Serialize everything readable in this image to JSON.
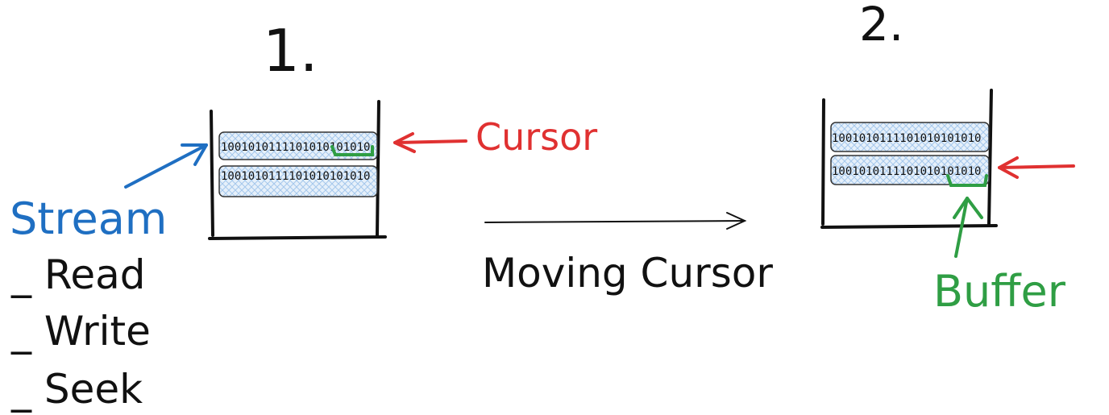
{
  "colors": {
    "ink": "#111111",
    "stream": "#1f6fc2",
    "cursor": "#e03131",
    "buffer": "#2f9e44",
    "hatch": "#a5c8ec",
    "cellBorder": "#333333"
  },
  "stage1": {
    "label": "1.",
    "row1": "1001010111101010101010",
    "row2": "1001010111101010101010",
    "cursor_label": "Cursor"
  },
  "stage2": {
    "label": "2.",
    "row1": "1001010111101010101010",
    "row2": "1001010111101010101010",
    "buffer_label": "Buffer"
  },
  "stream": {
    "label": "Stream",
    "ops": [
      "_ Read",
      "_ Write",
      "_ Seek"
    ]
  },
  "transition": {
    "label": "Moving Cursor"
  }
}
